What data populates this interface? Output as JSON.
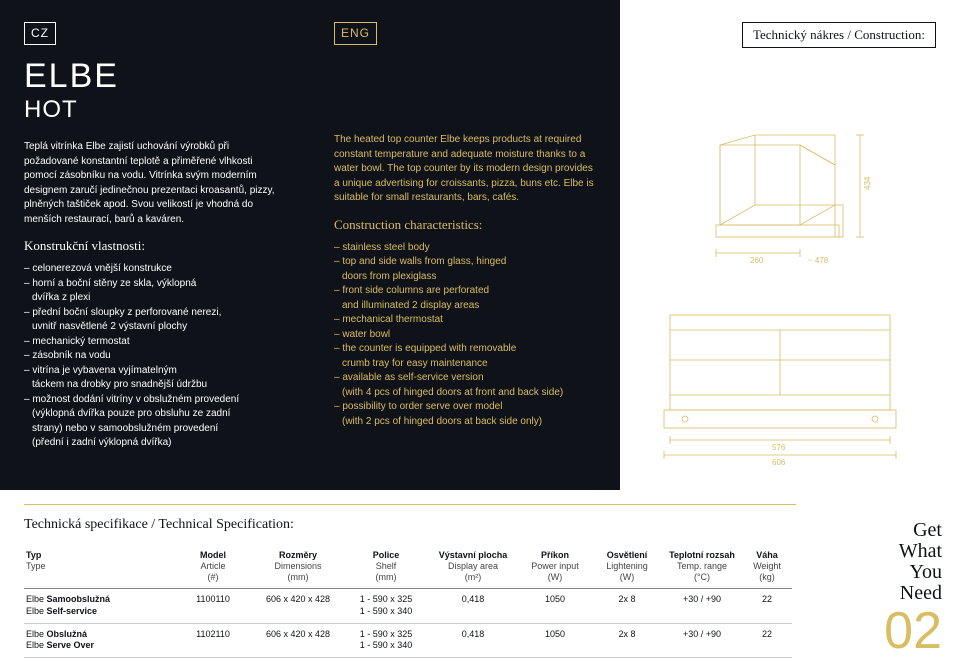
{
  "lang": {
    "cz": "CZ",
    "eng": "ENG"
  },
  "title": "ELBE",
  "subtitle": "HOT",
  "draw_title": "Technický nákres / Construction:",
  "cz_desc": "Teplá vitrínka Elbe zajistí uchování výrobků při požadované konstantní teplotě a přiměřené vlhkosti pomocí zásobníku na vodu. Vitrínka svým moderním designem zaručí jedinečnou prezentaci kroasantů, pizzy, plněných taštiček apod. Svou velikostí je vhodná do menších restaurací, barů a kaváren.",
  "eng_desc": "The heated top counter Elbe keeps products at required constant temperature and adequate moisture thanks to a water bowl. The top counter by its modern design provides a unique advertising for croissants, pizza, buns etc. Elbe is suitable for small restaurants, bars, cafés.",
  "cz_section": "Konstrukční vlastnosti:",
  "eng_section": "Construction characteristics:",
  "cz_feat": [
    "celonerezová vnější konstrukce",
    "horní a boční stěny ze skla, výklopná",
    "  dvířka z plexi",
    "přední boční sloupky z perforované nerezi,",
    "  uvnitř nasvětlené 2 výstavní plochy",
    "mechanický termostat",
    "zásobník na vodu",
    "vitrína je vybavena vyjímatelným",
    "  táckem na drobky pro snadnější údržbu",
    "možnost dodání vitríny v obslužném provedení",
    "  (výklopná dvířka pouze pro obsluhu ze zadní",
    "  strany) nebo v samoobslužném provedení",
    "  (přední i zadní výklopná dvířka)"
  ],
  "eng_feat": [
    "stainless steel body",
    "top and side walls from glass, hinged",
    "  doors from plexiglass",
    "front side columns are perforated",
    "  and illuminated 2 display areas",
    "mechanical thermostat",
    "water bowl",
    "the counter is equipped with removable",
    "  crumb tray for easy maintenance",
    "available as self-service version",
    "  (with 4 pcs of hinged doors at front and back side)",
    "possibility to order serve over model",
    "  (with 2 pcs of hinged doors at back side only)"
  ],
  "dims": {
    "top_h": "434",
    "top_w": "260",
    "top_w2": "~ 478",
    "bot_w": "576",
    "bot_w2": "606"
  },
  "spec_title": "Technická specifikace / Technical Specification:",
  "cols": [
    [
      "Typ",
      "Type",
      ""
    ],
    [
      "Model",
      "Article",
      "(#)"
    ],
    [
      "Rozměry",
      "Dimensions",
      "(mm)"
    ],
    [
      "Police",
      "Shelf",
      "(mm)"
    ],
    [
      "Výstavní plocha",
      "Display area",
      "(m²)"
    ],
    [
      "Příkon",
      "Power input",
      "(W)"
    ],
    [
      "Osvětlení",
      "Lightening",
      "(W)"
    ],
    [
      "Teplotní rozsah",
      "Temp. range",
      "(°C)"
    ],
    [
      "Váha",
      "Weight",
      "(kg)"
    ]
  ],
  "rows": [
    {
      "type": "Elbe <b>Samoobslužná</b><br>Elbe <b>Self-service</b>",
      "cells": [
        "1100110",
        "606 x 420 x 428",
        "1 - 590 x 325\n1 - 590 x 340",
        "0,418",
        "1050",
        "2x 8",
        "+30 / +90",
        "22"
      ]
    },
    {
      "type": "Elbe <b>Obslužná</b><br>Elbe <b>Serve Over</b>",
      "cells": [
        "1102110",
        "606 x 420 x 428",
        "1 - 590 x 325\n1 - 590 x 340",
        "0,418",
        "1050",
        "2x 8",
        "+30 / +90",
        "22"
      ]
    }
  ],
  "slogan": [
    "Get",
    "What",
    "You",
    "Need"
  ],
  "page": "02"
}
